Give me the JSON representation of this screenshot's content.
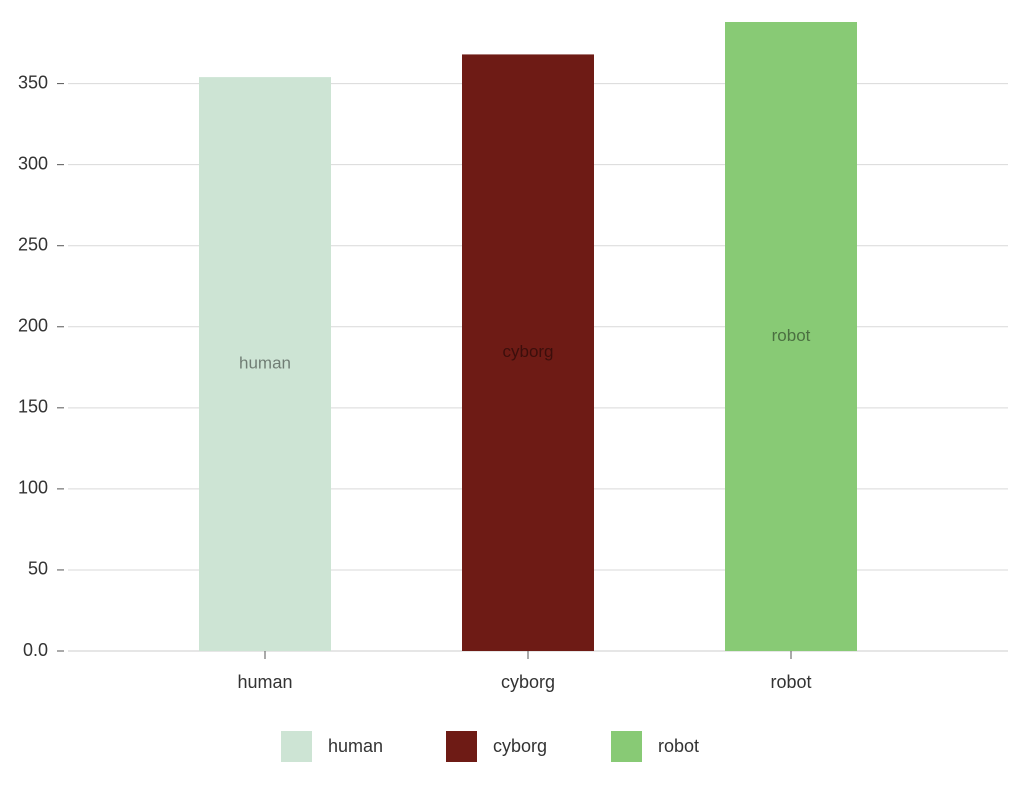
{
  "chart_data": {
    "type": "bar",
    "categories": [
      "human",
      "cyborg",
      "robot"
    ],
    "values": [
      354,
      368,
      388
    ],
    "colors": [
      "#cde4d4",
      "#6e1b15",
      "#88ca75"
    ],
    "ylim": [
      0,
      388
    ],
    "yticks": [
      {
        "value": 0,
        "label": "0.0"
      },
      50,
      100,
      150,
      200,
      250,
      300,
      350
    ],
    "grid": true,
    "legend": "bottom"
  }
}
